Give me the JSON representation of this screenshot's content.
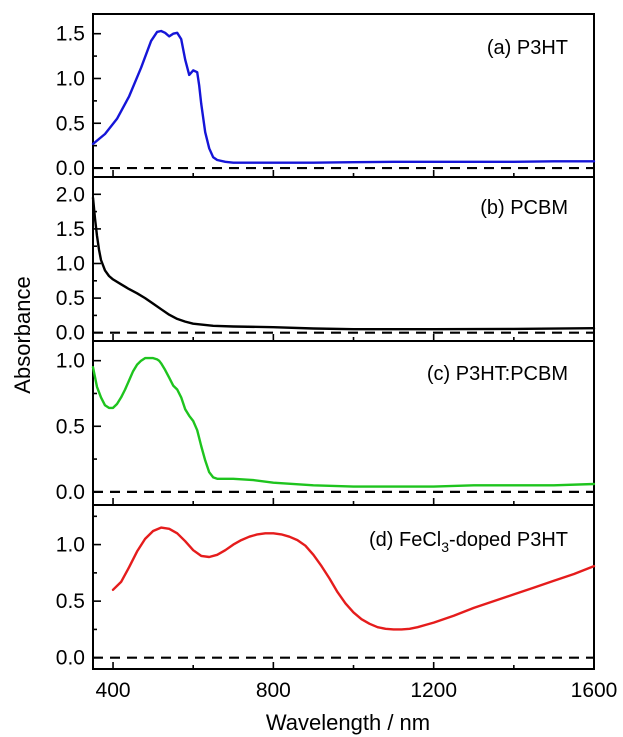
{
  "chart_data": {
    "type": "line",
    "xlabel": "Wavelength / nm",
    "ylabel": "Absorbance",
    "xlim": [
      350,
      1600
    ],
    "xticks": [
      400,
      800,
      1200,
      1600
    ],
    "xtick_labels": [
      "400",
      "800",
      "1200",
      "1600"
    ],
    "colors": {
      "a": "#1515d8",
      "b": "#000000",
      "c": "#1ec41e",
      "d": "#e51c1c"
    },
    "panels": [
      {
        "id": "a",
        "label": "(a) P3HT",
        "ylim": [
          -0.1,
          1.72
        ],
        "yticks": [
          0.0,
          0.5,
          1.0,
          1.5
        ],
        "ytick_labels": [
          "0.0",
          "0.5",
          "1.0",
          "1.5"
        ],
        "color": "#1515d8",
        "x": [
          350,
          380,
          410,
          440,
          470,
          495,
          510,
          520,
          530,
          540,
          550,
          560,
          570,
          580,
          590,
          600,
          610,
          615,
          620,
          630,
          640,
          650,
          660,
          680,
          700,
          750,
          800,
          900,
          1000,
          1100,
          1200,
          1300,
          1400,
          1500,
          1600
        ],
        "y": [
          0.27,
          0.38,
          0.55,
          0.8,
          1.12,
          1.42,
          1.52,
          1.53,
          1.51,
          1.47,
          1.5,
          1.51,
          1.44,
          1.21,
          1.04,
          1.09,
          1.07,
          0.92,
          0.72,
          0.4,
          0.22,
          0.12,
          0.09,
          0.07,
          0.06,
          0.06,
          0.06,
          0.06,
          0.065,
          0.07,
          0.07,
          0.07,
          0.07,
          0.075,
          0.075
        ]
      },
      {
        "id": "b",
        "label": "(b) PCBM",
        "ylim": [
          -0.12,
          2.25
        ],
        "yticks": [
          0.0,
          0.5,
          1.0,
          1.5,
          2.0
        ],
        "ytick_labels": [
          "0.0",
          "0.5",
          "1.0",
          "1.5",
          "2.0"
        ],
        "color": "#000000",
        "x": [
          350,
          355,
          360,
          365,
          370,
          380,
          390,
          400,
          420,
          440,
          460,
          480,
          500,
          520,
          540,
          560,
          580,
          600,
          650,
          700,
          800,
          900,
          1000,
          1200,
          1400,
          1600
        ],
        "y": [
          1.95,
          1.65,
          1.4,
          1.2,
          1.05,
          0.9,
          0.82,
          0.77,
          0.7,
          0.63,
          0.57,
          0.5,
          0.42,
          0.34,
          0.26,
          0.2,
          0.16,
          0.13,
          0.1,
          0.09,
          0.08,
          0.06,
          0.05,
          0.05,
          0.055,
          0.065
        ]
      },
      {
        "id": "c",
        "label": "(c) P3HT:PCBM",
        "ylim": [
          -0.1,
          1.15
        ],
        "yticks": [
          0.0,
          0.5,
          1.0
        ],
        "ytick_labels": [
          "0.0",
          "0.5",
          "1.0"
        ],
        "color": "#1ec41e",
        "x": [
          350,
          360,
          370,
          380,
          390,
          400,
          410,
          420,
          430,
          440,
          450,
          460,
          470,
          480,
          490,
          500,
          510,
          515,
          520,
          530,
          540,
          550,
          560,
          570,
          580,
          590,
          600,
          610,
          620,
          630,
          640,
          650,
          660,
          670,
          680,
          700,
          750,
          800,
          900,
          1000,
          1100,
          1200,
          1300,
          1400,
          1500,
          1600
        ],
        "y": [
          0.95,
          0.8,
          0.72,
          0.66,
          0.64,
          0.64,
          0.67,
          0.72,
          0.78,
          0.85,
          0.92,
          0.97,
          1.0,
          1.02,
          1.02,
          1.02,
          1.01,
          1.0,
          0.98,
          0.93,
          0.87,
          0.81,
          0.78,
          0.72,
          0.63,
          0.58,
          0.54,
          0.47,
          0.35,
          0.24,
          0.15,
          0.11,
          0.1,
          0.1,
          0.1,
          0.1,
          0.09,
          0.07,
          0.05,
          0.04,
          0.04,
          0.04,
          0.05,
          0.05,
          0.05,
          0.06
        ]
      },
      {
        "id": "d",
        "label_main": "(d) FeCl",
        "label_sub": "3",
        "label_tail": "-doped P3HT",
        "ylim": [
          -0.1,
          1.35
        ],
        "yticks": [
          0.0,
          0.5,
          1.0
        ],
        "ytick_labels": [
          "0.0",
          "0.5",
          "1.0"
        ],
        "color": "#e51c1c",
        "x": [
          400,
          420,
          440,
          460,
          480,
          500,
          520,
          540,
          560,
          580,
          600,
          620,
          640,
          660,
          680,
          700,
          720,
          740,
          760,
          780,
          800,
          820,
          840,
          860,
          880,
          900,
          920,
          940,
          960,
          980,
          1000,
          1020,
          1040,
          1060,
          1080,
          1100,
          1120,
          1140,
          1160,
          1180,
          1200,
          1250,
          1300,
          1350,
          1400,
          1450,
          1500,
          1550,
          1600
        ],
        "y": [
          0.6,
          0.67,
          0.8,
          0.94,
          1.05,
          1.12,
          1.15,
          1.14,
          1.1,
          1.03,
          0.95,
          0.9,
          0.89,
          0.91,
          0.95,
          1.0,
          1.04,
          1.07,
          1.09,
          1.1,
          1.1,
          1.09,
          1.07,
          1.04,
          0.99,
          0.91,
          0.81,
          0.7,
          0.58,
          0.48,
          0.4,
          0.34,
          0.3,
          0.27,
          0.255,
          0.25,
          0.25,
          0.255,
          0.27,
          0.29,
          0.31,
          0.37,
          0.44,
          0.5,
          0.56,
          0.62,
          0.68,
          0.74,
          0.81
        ]
      }
    ]
  }
}
